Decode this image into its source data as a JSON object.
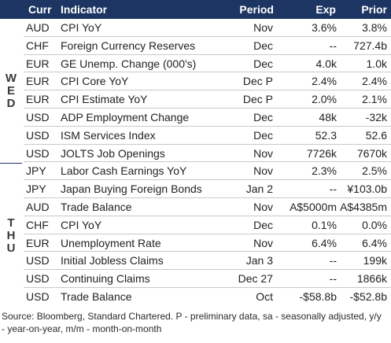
{
  "header": {
    "curr": "Curr",
    "indicator": "Indicator",
    "period": "Period",
    "exp": "Exp",
    "prior": "Prior"
  },
  "days": [
    "WED",
    "THU"
  ],
  "rows": [
    {
      "curr": "AUD",
      "indicator": "CPI YoY",
      "period": "Nov",
      "exp": "3.6%",
      "prior": "3.8%"
    },
    {
      "curr": "CHF",
      "indicator": "Foreign Currency Reserves",
      "period": "Dec",
      "exp": "--",
      "prior": "727.4b"
    },
    {
      "curr": "EUR",
      "indicator": "GE Unemp. Change (000's)",
      "period": "Dec",
      "exp": "4.0k",
      "prior": "1.0k"
    },
    {
      "curr": "EUR",
      "indicator": "CPI Core YoY",
      "period": "Dec P",
      "exp": "2.4%",
      "prior": "2.4%"
    },
    {
      "curr": "EUR",
      "indicator": "CPI Estimate YoY",
      "period": "Dec P",
      "exp": "2.0%",
      "prior": "2.1%"
    },
    {
      "curr": "USD",
      "indicator": "ADP Employment Change",
      "period": "Dec",
      "exp": "48k",
      "prior": "-32k"
    },
    {
      "curr": "USD",
      "indicator": "ISM Services Index",
      "period": "Dec",
      "exp": "52.3",
      "prior": "52.6"
    },
    {
      "curr": "USD",
      "indicator": "JOLTS Job Openings",
      "period": "Nov",
      "exp": "7726k",
      "prior": "7670k"
    },
    {
      "curr": "JPY",
      "indicator": "Labor Cash Earnings YoY",
      "period": "Nov",
      "exp": "2.3%",
      "prior": "2.5%"
    },
    {
      "curr": "JPY",
      "indicator": "Japan Buying Foreign Bonds",
      "period": "Jan 2",
      "exp": "--",
      "prior": "¥103.0b"
    },
    {
      "curr": "AUD",
      "indicator": "Trade Balance",
      "period": "Nov",
      "exp": "A$5000m",
      "prior": "A$4385m"
    },
    {
      "curr": "CHF",
      "indicator": "CPI YoY",
      "period": "Dec",
      "exp": "0.1%",
      "prior": "0.0%"
    },
    {
      "curr": "EUR",
      "indicator": "Unemployment Rate",
      "period": "Nov",
      "exp": "6.4%",
      "prior": "6.4%"
    },
    {
      "curr": "USD",
      "indicator": "Initial Jobless Claims",
      "period": "Jan 3",
      "exp": "--",
      "prior": "199k"
    },
    {
      "curr": "USD",
      "indicator": "Continuing Claims",
      "period": "Dec 27",
      "exp": "--",
      "prior": "1866k"
    },
    {
      "curr": "USD",
      "indicator": "Trade Balance",
      "period": "Oct",
      "exp": "-$58.8b",
      "prior": "-$52.8b"
    }
  ],
  "footnote": "Source: Bloomberg, Standard Chartered. P - preliminary data, sa - seasonally adjusted, y/y - year-on-year, m/m - month-on-month"
}
